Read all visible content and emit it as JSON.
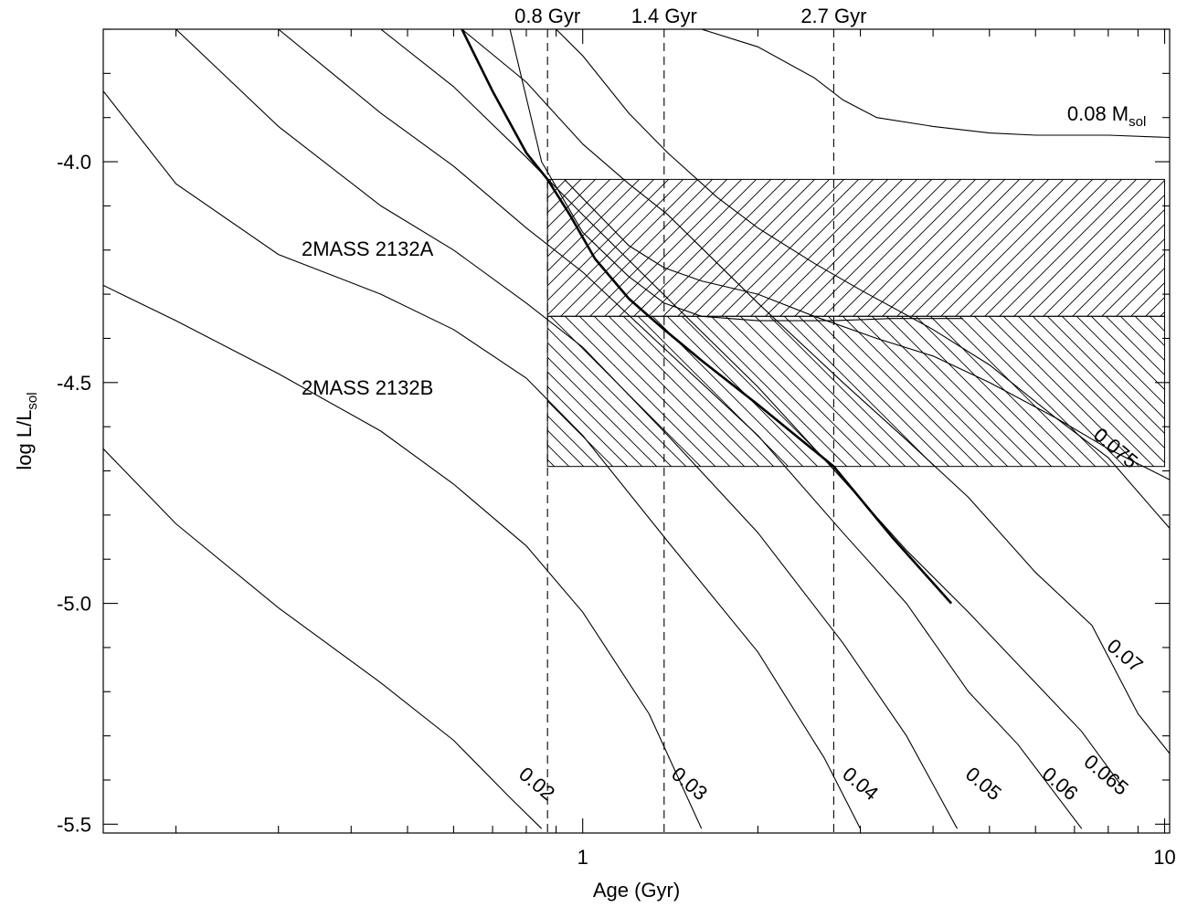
{
  "chart_data": {
    "type": "line",
    "xlabel": "Age (Gyr)",
    "ylabel_main": "log L/L",
    "ylabel_sub": "sol",
    "xscale": "log",
    "xlim": [
      0.15,
      10.2
    ],
    "ylim": [
      -5.52,
      -3.7
    ],
    "x_tick_labels": [
      {
        "value": 1,
        "label": "1"
      },
      {
        "value": 10,
        "label": "10"
      }
    ],
    "y_tick_labels": [
      {
        "value": -4.0,
        "label": "-4.0"
      },
      {
        "value": -4.5,
        "label": "-4.5"
      },
      {
        "value": -5.0,
        "label": "-5.0"
      },
      {
        "value": -5.5,
        "label": "-5.5"
      }
    ],
    "age_markers": [
      {
        "x": 0.87,
        "label": "0.8 Gyr"
      },
      {
        "x": 1.38,
        "label": "1.4 Gyr"
      },
      {
        "x": 2.7,
        "label": "2.7 Gyr"
      }
    ],
    "objects": [
      {
        "name": "2MASS 2132A",
        "x_range": [
          0.87,
          10
        ],
        "y_range": [
          -4.35,
          -4.04
        ],
        "hatch": "/"
      },
      {
        "name": "2MASS 2132B",
        "x_range": [
          0.87,
          10
        ],
        "y_range": [
          -4.69,
          -4.35
        ],
        "hatch": "\\"
      }
    ],
    "series": [
      {
        "name": "0.02",
        "label_x": 0.82,
        "label_y": -5.42,
        "x": [
          0.15,
          0.2,
          0.3,
          0.45,
          0.6,
          0.75,
          0.85
        ],
        "y": [
          -4.65,
          -4.82,
          -5.01,
          -5.18,
          -5.31,
          -5.44,
          -5.51
        ]
      },
      {
        "name": "0.03",
        "label_x": 1.5,
        "label_y": -5.42,
        "x": [
          0.15,
          0.2,
          0.3,
          0.45,
          0.6,
          0.8,
          1.0,
          1.3,
          1.6
        ],
        "y": [
          -4.28,
          -4.36,
          -4.48,
          -4.61,
          -4.73,
          -4.87,
          -5.02,
          -5.25,
          -5.51
        ]
      },
      {
        "name": "0.04",
        "label_x": 2.95,
        "label_y": -5.42,
        "x": [
          0.15,
          0.2,
          0.3,
          0.45,
          0.6,
          0.8,
          1.0,
          1.4,
          2.0,
          2.6,
          3.0
        ],
        "y": [
          -3.84,
          -4.05,
          -4.21,
          -4.3,
          -4.38,
          -4.49,
          -4.62,
          -4.86,
          -5.11,
          -5.35,
          -5.51
        ]
      },
      {
        "name": "0.05",
        "label_x": 4.8,
        "label_y": -5.42,
        "x": [
          0.2,
          0.3,
          0.45,
          0.6,
          0.8,
          1.0,
          1.4,
          2.0,
          2.8,
          3.6,
          4.4
        ],
        "y": [
          -3.7,
          -3.92,
          -4.1,
          -4.2,
          -4.32,
          -4.42,
          -4.62,
          -4.84,
          -5.09,
          -5.3,
          -5.51
        ]
      },
      {
        "name": "0.06",
        "label_x": 6.5,
        "label_y": -5.42,
        "x": [
          0.3,
          0.45,
          0.6,
          0.8,
          1.0,
          1.4,
          2.0,
          2.8,
          3.6,
          4.6,
          5.6,
          7.2
        ],
        "y": [
          -3.7,
          -3.89,
          -4.01,
          -4.15,
          -4.25,
          -4.43,
          -4.62,
          -4.84,
          -5.0,
          -5.2,
          -5.32,
          -5.51
        ]
      },
      {
        "name": "0.065",
        "label_x": 7.8,
        "label_y": -5.4,
        "x": [
          0.45,
          0.6,
          0.8,
          1.0,
          1.4,
          2.0,
          2.8,
          3.6,
          4.6,
          6.0,
          7.2,
          8.5
        ],
        "y": [
          -3.7,
          -3.83,
          -3.99,
          -4.12,
          -4.31,
          -4.51,
          -4.72,
          -4.88,
          -5.02,
          -5.18,
          -5.29,
          -5.42
        ]
      },
      {
        "name": "0.07",
        "label_x": 8.4,
        "label_y": -5.13,
        "x": [
          0.62,
          0.8,
          1.0,
          1.2,
          1.4,
          2.0,
          2.8,
          3.6,
          4.6,
          6.0,
          7.5,
          9.0,
          10.2
        ],
        "y": [
          -3.7,
          -3.82,
          -3.96,
          -4.05,
          -4.12,
          -4.32,
          -4.5,
          -4.63,
          -4.76,
          -4.93,
          -5.05,
          -5.25,
          -5.34
        ]
      },
      {
        "name": "0.075",
        "label_x": 8.1,
        "label_y": -4.66,
        "x": [
          0.9,
          1.0,
          1.2,
          1.4,
          1.7,
          2.0,
          2.5,
          3.0,
          4.0,
          5.0,
          6.5,
          8.0,
          10.2
        ],
        "y": [
          -3.7,
          -3.76,
          -3.89,
          -3.98,
          -4.08,
          -4.15,
          -4.23,
          -4.29,
          -4.38,
          -4.46,
          -4.58,
          -4.67,
          -4.83
        ]
      },
      {
        "name": "0.08 M",
        "name_sub": "sol",
        "label_x": 6.8,
        "label_y": -3.89,
        "x": [
          1.6,
          2.0,
          2.5,
          2.8,
          3.2,
          4.0,
          5.0,
          6.0,
          8.0,
          10.2
        ],
        "y": [
          -3.7,
          -3.74,
          -3.81,
          -3.86,
          -3.9,
          -3.92,
          -3.935,
          -3.94,
          -3.94,
          -3.945
        ]
      },
      {
        "name": "",
        "x": [
          0.75,
          0.85,
          1.0,
          1.2,
          1.38,
          1.6,
          2.0,
          2.7,
          3.4,
          4.0,
          4.5
        ],
        "y": [
          -3.7,
          -4.0,
          -4.16,
          -4.26,
          -4.32,
          -4.35,
          -4.36,
          -4.36,
          -4.355,
          -4.355,
          -4.355
        ]
      },
      {
        "name": "",
        "x": [
          0.93,
          1.2,
          1.38,
          1.6,
          2.0,
          2.5,
          3.2,
          4.0,
          5.0,
          6.5,
          8.0,
          10.2
        ],
        "y": [
          -4.04,
          -4.19,
          -4.24,
          -4.27,
          -4.3,
          -4.35,
          -4.4,
          -4.44,
          -4.5,
          -4.58,
          -4.65,
          -4.72
        ]
      },
      {
        "name": "",
        "thick": true,
        "x": [
          0.62,
          0.7,
          0.8,
          0.87,
          0.95,
          1.05,
          1.2,
          1.38,
          1.6,
          2.0,
          2.7,
          3.4,
          4.3
        ],
        "y": [
          -3.7,
          -3.84,
          -3.98,
          -4.04,
          -4.12,
          -4.22,
          -4.31,
          -4.38,
          -4.45,
          -4.55,
          -4.69,
          -4.85,
          -5.0
        ]
      }
    ]
  }
}
